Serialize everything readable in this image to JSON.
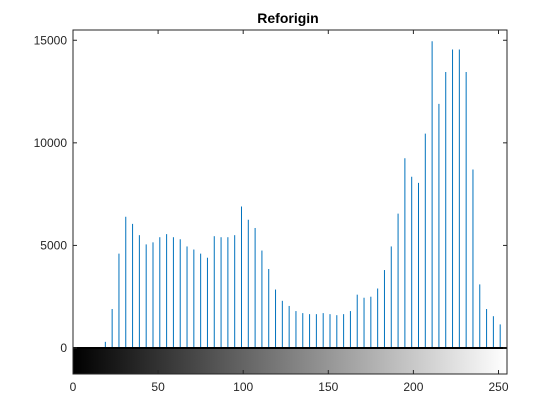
{
  "chart_data": {
    "type": "bar",
    "style": "stem",
    "title": "Reforigin",
    "xlabel": "",
    "ylabel": "",
    "xlim": [
      0,
      255
    ],
    "ylim": [
      0,
      15500
    ],
    "xticks": [
      0,
      50,
      100,
      150,
      200,
      250
    ],
    "yticks": [
      0,
      5000,
      10000,
      15000
    ],
    "colors": {
      "stem": "#0072BD",
      "axis": "#262626",
      "zero_line": "#000000",
      "background": "#ffffff"
    },
    "colorbar": {
      "type": "grayscale-gradient",
      "from": "#000000",
      "to": "#ffffff"
    },
    "x": [
      19,
      23,
      27,
      31,
      35,
      39,
      43,
      47,
      51,
      55,
      59,
      63,
      67,
      71,
      75,
      79,
      83,
      87,
      91,
      95,
      99,
      103,
      107,
      111,
      115,
      119,
      123,
      127,
      131,
      135,
      139,
      143,
      147,
      151,
      155,
      159,
      163,
      167,
      171,
      175,
      179,
      183,
      187,
      191,
      195,
      199,
      203,
      207,
      211,
      215,
      219,
      223,
      227,
      231,
      235,
      239,
      243,
      247,
      251
    ],
    "values": [
      300,
      1900,
      4600,
      6400,
      6050,
      5500,
      5050,
      5150,
      5400,
      5550,
      5400,
      5300,
      4950,
      4800,
      4600,
      4400,
      5450,
      5400,
      5400,
      5500,
      6900,
      6250,
      5850,
      4750,
      3850,
      2850,
      2300,
      2050,
      1800,
      1700,
      1650,
      1650,
      1700,
      1650,
      1600,
      1650,
      1800,
      2600,
      2450,
      2500,
      2900,
      3800,
      4950,
      6550,
      9250,
      8350,
      8050,
      10450,
      14950,
      11900,
      13450,
      14550,
      14550,
      13450,
      8700,
      3100,
      1900,
      1550,
      1150
    ]
  }
}
